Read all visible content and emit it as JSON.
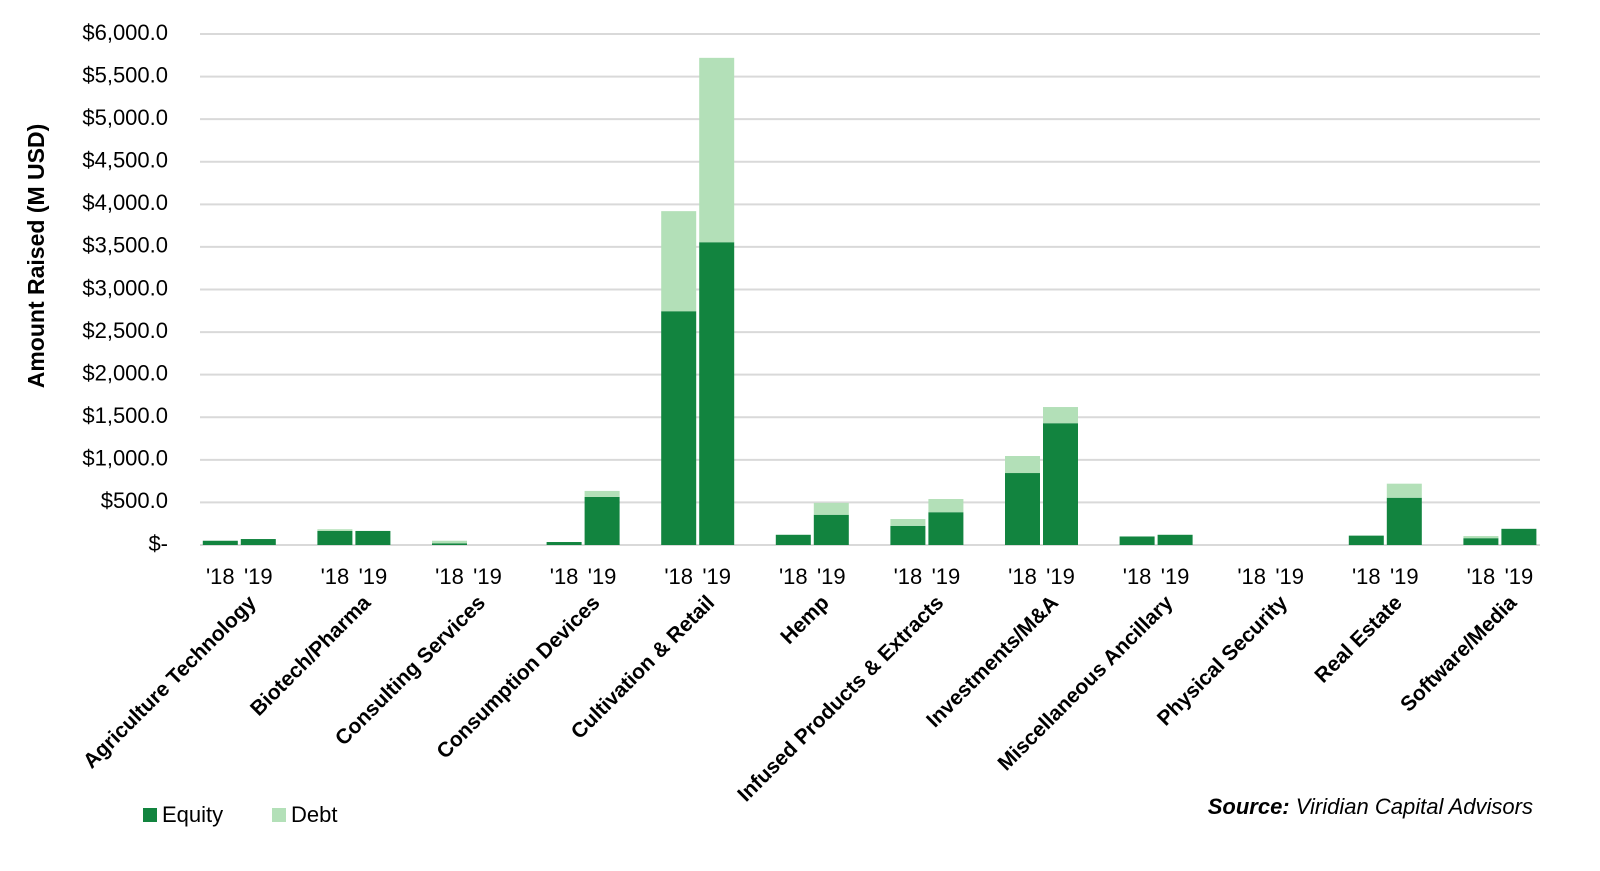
{
  "chart_data": {
    "type": "grouped-stacked-bar",
    "y_label": "Amount Raised (M USD)",
    "categories": [
      "Agriculture Technology",
      "Biotech/Pharma",
      "Consulting Services",
      "Consumption Devices",
      "Cultivation & Retail",
      "Hemp",
      "Infused Products & Extracts",
      "Investments/M&A",
      "Miscellaneous Ancillary",
      "Physical Security",
      "Real Estate",
      "Software/Media"
    ],
    "subcategories": [
      "'18",
      "'19"
    ],
    "series": [
      {
        "name": "Equity",
        "color": "#12843f",
        "values": [
          [
            50,
            70
          ],
          [
            165,
            165
          ],
          [
            20,
            0
          ],
          [
            35,
            565
          ],
          [
            2745,
            3555
          ],
          [
            120,
            355
          ],
          [
            225,
            385
          ],
          [
            845,
            1430
          ],
          [
            100,
            120
          ],
          [
            0,
            0
          ],
          [
            110,
            555
          ],
          [
            80,
            190
          ]
        ]
      },
      {
        "name": "Debt",
        "color": "#b3e0b8",
        "values": [
          [
            0,
            0
          ],
          [
            20,
            0
          ],
          [
            30,
            0
          ],
          [
            0,
            70
          ],
          [
            1175,
            2165
          ],
          [
            0,
            140
          ],
          [
            80,
            155
          ],
          [
            200,
            190
          ],
          [
            0,
            0
          ],
          [
            0,
            0
          ],
          [
            0,
            165
          ],
          [
            25,
            0
          ]
        ]
      }
    ],
    "ylim": [
      0,
      6000
    ],
    "yticks": [
      {
        "value": 0,
        "label": "$-"
      },
      {
        "value": 500,
        "label": "$500.0"
      },
      {
        "value": 1000,
        "label": "$1,000.0"
      },
      {
        "value": 1500,
        "label": "$1,500.0"
      },
      {
        "value": 2000,
        "label": "$2,000.0"
      },
      {
        "value": 2500,
        "label": "$2,500.0"
      },
      {
        "value": 3000,
        "label": "$3,000.0"
      },
      {
        "value": 3500,
        "label": "$3,500.0"
      },
      {
        "value": 4000,
        "label": "$4,000.0"
      },
      {
        "value": 4500,
        "label": "$4,500.0"
      },
      {
        "value": 5000,
        "label": "$5,000.0"
      },
      {
        "value": 5500,
        "label": "$5,500.0"
      },
      {
        "value": 6000,
        "label": "$6,000.0"
      }
    ],
    "grid": true,
    "source": {
      "label": "Source:",
      "text": "Viridian Capital Advisors"
    }
  }
}
